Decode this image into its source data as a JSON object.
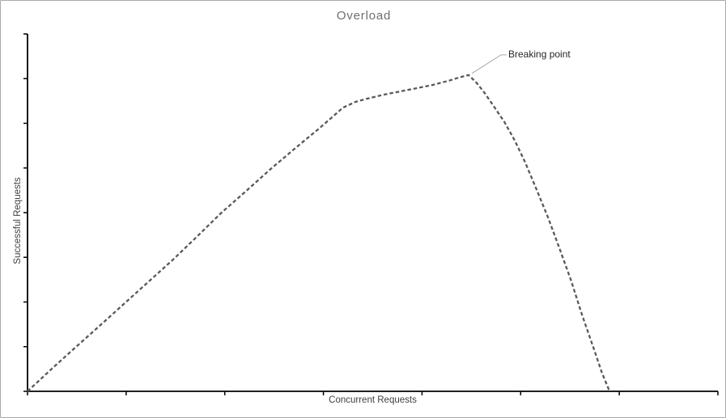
{
  "chart": {
    "title": "Overload",
    "x_axis_label": "Concurrent Requests",
    "y_axis_label": "Successful Requests",
    "annotation_label": "Breaking point",
    "colors": {
      "curve": "#595959",
      "axis": "#000000",
      "title_text": "#6e6e6e",
      "axis_label_text": "#3f3f3f",
      "annotation_text": "#262626",
      "leader_line": "#a6a6a6",
      "frame_border": "#a9a9a9",
      "background": "#ffffff"
    }
  },
  "chart_data": {
    "type": "line",
    "title": "Overload",
    "xlabel": "Concurrent Requests",
    "ylabel": "Successful Requests",
    "line_style": "dashed",
    "grid": false,
    "legend": false,
    "numeric_tick_labels": false,
    "x_tick_count": 8,
    "y_tick_count": 9,
    "xlim": [
      0,
      100
    ],
    "ylim": [
      0,
      100
    ],
    "series": [
      {
        "name": "Successful Requests vs Concurrent Requests",
        "points": [
          [
            0.0,
            0.0
          ],
          [
            3.5,
            6.3
          ],
          [
            7.0,
            12.4
          ],
          [
            10.6,
            18.6
          ],
          [
            14.1,
            24.7
          ],
          [
            17.6,
            30.8
          ],
          [
            21.1,
            36.9
          ],
          [
            24.6,
            43.4
          ],
          [
            28.1,
            50.0
          ],
          [
            31.7,
            56.1
          ],
          [
            35.2,
            62.2
          ],
          [
            38.7,
            67.9
          ],
          [
            42.2,
            73.5
          ],
          [
            44.0,
            76.5
          ],
          [
            45.7,
            79.4
          ],
          [
            47.5,
            81.0
          ],
          [
            49.2,
            81.9
          ],
          [
            51.6,
            83.0
          ],
          [
            53.9,
            83.9
          ],
          [
            56.3,
            84.8
          ],
          [
            58.6,
            85.7
          ],
          [
            61.0,
            86.9
          ],
          [
            62.5,
            87.8
          ],
          [
            63.9,
            88.5
          ],
          [
            65.1,
            86.2
          ],
          [
            66.2,
            83.5
          ],
          [
            67.6,
            79.6
          ],
          [
            69.1,
            75.3
          ],
          [
            70.6,
            70.1
          ],
          [
            72.1,
            64.0
          ],
          [
            73.7,
            56.6
          ],
          [
            75.4,
            48.6
          ],
          [
            77.0,
            40.3
          ],
          [
            78.7,
            31.2
          ],
          [
            80.3,
            21.5
          ],
          [
            82.1,
            11.5
          ],
          [
            83.2,
            5.2
          ],
          [
            84.3,
            0.0
          ]
        ]
      }
    ],
    "annotations": [
      {
        "label": "Breaking point",
        "x": 63.9,
        "y": 88.5
      }
    ]
  }
}
